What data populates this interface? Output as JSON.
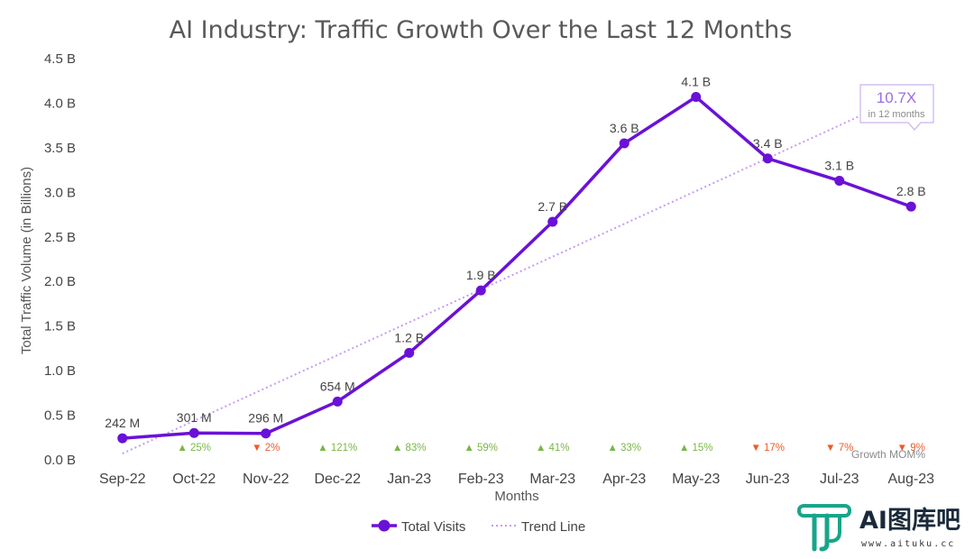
{
  "chart_data": {
    "type": "line",
    "title": "AI Industry: Traffic Growth Over the Last 12 Months",
    "xlabel": "Months",
    "ylabel": "Total Traffic Volume (in Billions)",
    "ylim": [
      0,
      4.5
    ],
    "y_ticks": [
      0,
      0.5,
      1.0,
      1.5,
      2.0,
      2.5,
      3.0,
      3.5,
      4.0,
      4.5
    ],
    "y_tick_labels": [
      "0.0 B",
      "0.5 B",
      "1.0 B",
      "1.5 B",
      "2.0 B",
      "2.5 B",
      "3.0 B",
      "3.5 B",
      "4.0 B",
      "4.5 B"
    ],
    "categories": [
      "Sep-22",
      "Oct-22",
      "Nov-22",
      "Dec-22",
      "Jan-23",
      "Feb-23",
      "Mar-23",
      "Apr-23",
      "May-23",
      "Jun-23",
      "Jul-23",
      "Aug-23"
    ],
    "grid": false,
    "legend_position": "bottom",
    "series": [
      {
        "name": "Total Visits",
        "color": "#6a11d8",
        "values": [
          0.242,
          0.301,
          0.296,
          0.654,
          1.2,
          1.9,
          2.67,
          3.55,
          4.07,
          3.38,
          3.13,
          2.84
        ],
        "data_labels": [
          "242 M",
          "301 M",
          "296 M",
          "654 M",
          "1.2 B",
          "1.9 B",
          "2.7 B",
          "3.6 B",
          "4.1 B",
          "3.4 B",
          "3.1 B",
          "2.8 B"
        ]
      },
      {
        "name": "Trend Line",
        "color": "#c69cf2",
        "style": "dotted",
        "start": 0.07,
        "end": 3.98
      }
    ],
    "growth_mom": {
      "title": "Growth MOM%",
      "labels": [
        "",
        "25%",
        "2%",
        "121%",
        "83%",
        "59%",
        "41%",
        "33%",
        "15%",
        "17%",
        "7%",
        "9%"
      ],
      "direction": [
        "",
        "up",
        "down",
        "up",
        "up",
        "up",
        "up",
        "up",
        "up",
        "down",
        "down",
        "down"
      ],
      "up_color": "#7ab648",
      "down_color": "#f05a28"
    },
    "callout": {
      "value": "10.7X",
      "text": "in 12 months"
    }
  },
  "watermark": {
    "brand": "AI图库吧",
    "url": "www.aituku.cc",
    "color": "#18a58a"
  }
}
